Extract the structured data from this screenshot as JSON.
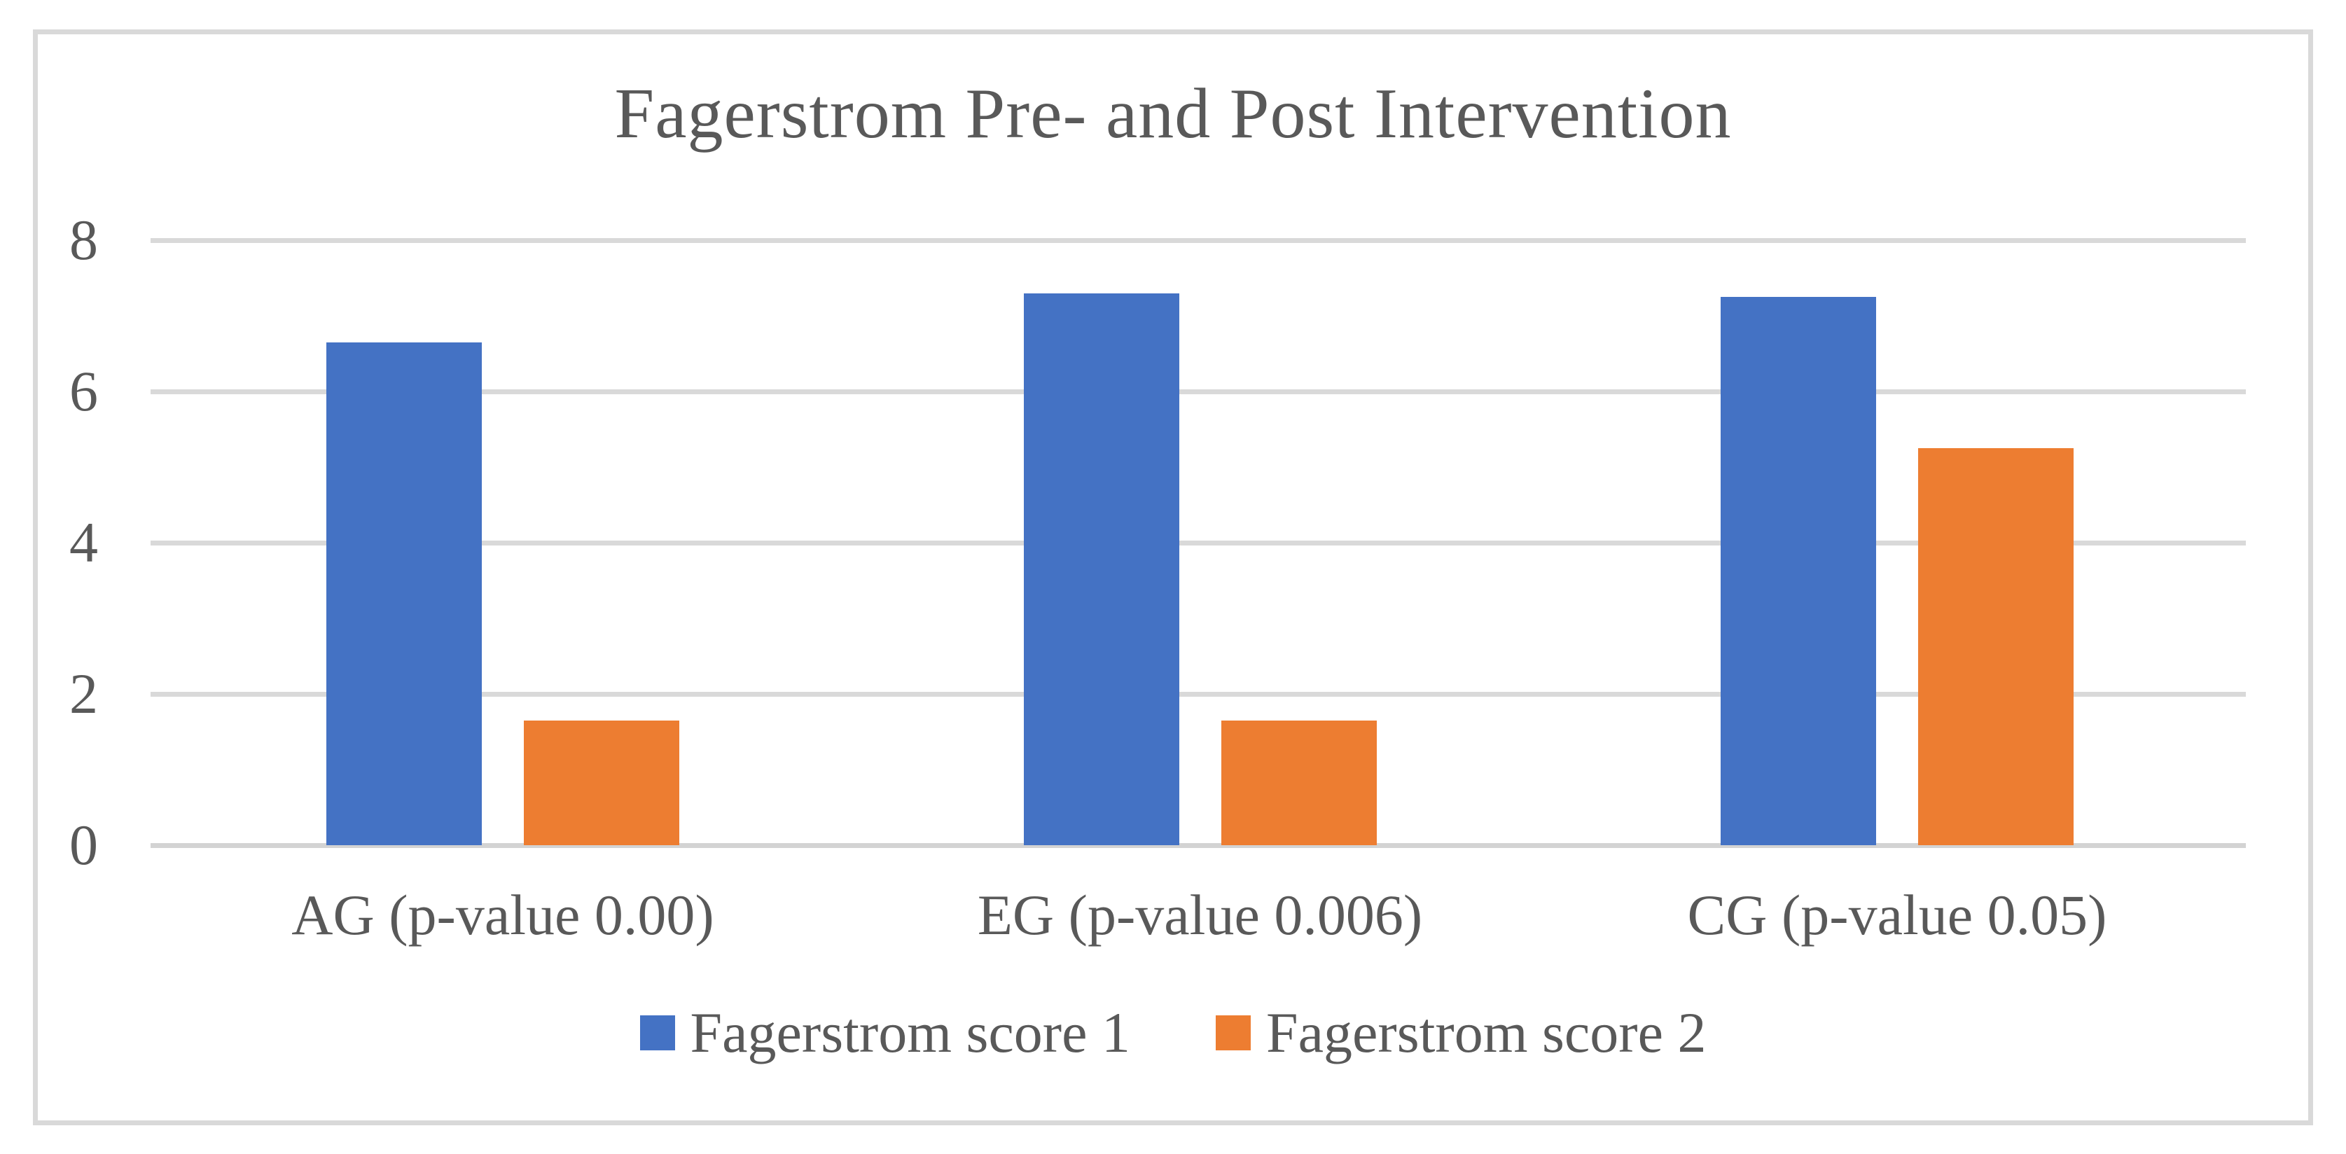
{
  "chart_data": {
    "type": "bar",
    "title": "Fagerstrom Pre- and Post Intervention",
    "categories": [
      "AG (p-value 0.00)",
      "EG (p-value 0.006)",
      "CG (p-value 0.05)"
    ],
    "series": [
      {
        "name": "Fagerstrom score 1",
        "color": "#4472C4",
        "values": [
          6.65,
          7.3,
          7.25
        ]
      },
      {
        "name": "Fagerstrom score 2",
        "color": "#ED7D31",
        "values": [
          1.65,
          1.65,
          5.25
        ]
      }
    ],
    "ylim": [
      0,
      8
    ],
    "yticks": [
      0,
      2,
      4,
      6,
      8
    ],
    "xlabel": "",
    "ylabel": "",
    "grid": "horizontal",
    "legend_position": "bottom",
    "colors": {
      "text": "#595959",
      "gridline": "#D9D9D9",
      "frame_border": "#D9D9D9",
      "background": "#FFFFFF"
    }
  }
}
